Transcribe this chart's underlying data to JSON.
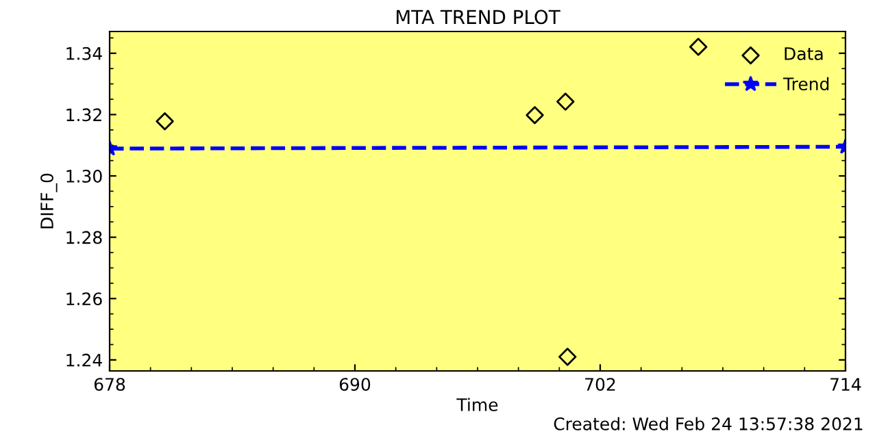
{
  "chart_data": {
    "type": "scatter",
    "title": "MTA TREND PLOT",
    "xlabel": "Time",
    "ylabel": "DIFF_0",
    "annotations": [
      "Created: Wed Feb 24 13:57:38 2021"
    ],
    "xlim": [
      678,
      714
    ],
    "xticks": [
      678,
      690,
      702,
      714
    ],
    "ylim": [
      1.2364,
      1.3471
    ],
    "yticks": [
      1.24,
      1.26,
      1.28,
      {
        "value": 1.3,
        "label": "1.30"
      },
      1.32,
      1.34
    ],
    "legend": "top right",
    "grid": false,
    "series": [
      {
        "name": "Data",
        "marker": "diamond",
        "color": "#000000",
        "x": [
          680.7,
          698.8,
          700.3,
          700.4,
          706.8
        ],
        "values": [
          1.3178,
          1.3198,
          1.3242,
          1.241,
          1.3421
        ]
      },
      {
        "name": "Trend",
        "type": "line",
        "marker": "star",
        "line_style": "dashed",
        "color": "#0000ff",
        "x": [
          678,
          714
        ],
        "values": [
          1.3089,
          1.3095
        ]
      }
    ]
  }
}
